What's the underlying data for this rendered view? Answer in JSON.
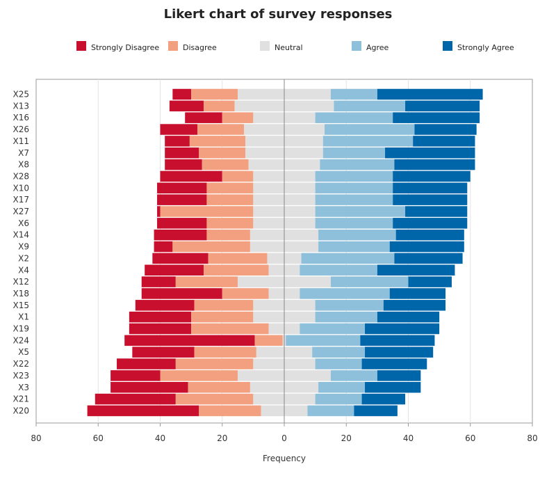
{
  "chart_data": {
    "type": "bar",
    "orientation": "horizontal-diverging-stacked",
    "title": "Likert chart of survey responses",
    "xlabel": "Frequency",
    "ylabel": "",
    "xlim": [
      -80,
      80
    ],
    "xticks": [
      -80,
      -60,
      -40,
      -20,
      0,
      20,
      40,
      60,
      80
    ],
    "xtick_labels": [
      "80",
      "60",
      "40",
      "20",
      "0",
      "20",
      "40",
      "60",
      "80"
    ],
    "grid": true,
    "legend_position": "top",
    "categories": [
      "X25",
      "X13",
      "X16",
      "X26",
      "X11",
      "X7",
      "X8",
      "X28",
      "X10",
      "X17",
      "X27",
      "X6",
      "X14",
      "X9",
      "X2",
      "X4",
      "X12",
      "X18",
      "X15",
      "X1",
      "X19",
      "X24",
      "X5",
      "X22",
      "X23",
      "X3",
      "X21",
      "X20"
    ],
    "series": [
      {
        "name": "Strongly Disagree",
        "color": "#C8102E",
        "values": [
          6,
          11,
          12,
          12,
          8,
          11,
          12,
          20,
          16,
          16,
          1,
          16,
          17,
          6,
          18,
          19,
          11,
          26,
          19,
          20,
          20,
          42,
          20,
          19,
          16,
          25,
          26,
          36
        ]
      },
      {
        "name": "Disagree",
        "color": "#F2A07F",
        "values": [
          15,
          10,
          10,
          15,
          18,
          15,
          15,
          10,
          15,
          15,
          30,
          15,
          14,
          25,
          19,
          21,
          20,
          15,
          19,
          20,
          25,
          9,
          20,
          25,
          25,
          20,
          25,
          20
        ]
      },
      {
        "name": "Neutral",
        "color": "#E0E0E0",
        "values": [
          30,
          32,
          20,
          26,
          25,
          25,
          23,
          20,
          20,
          20,
          20,
          20,
          22,
          22,
          11,
          10,
          30,
          10,
          20,
          20,
          10,
          1,
          18,
          20,
          30,
          22,
          20,
          15
        ]
      },
      {
        "name": "Agree",
        "color": "#8FC0DB",
        "values": [
          15,
          23,
          25,
          29,
          29,
          20,
          24,
          25,
          25,
          25,
          29,
          25,
          25,
          23,
          30,
          25,
          25,
          29,
          22,
          20,
          21,
          24,
          17,
          15,
          15,
          15,
          15,
          15
        ]
      },
      {
        "name": "Strongly Agree",
        "color": "#0066AA",
        "values": [
          34,
          24,
          28,
          20,
          20,
          29,
          26,
          25,
          24,
          24,
          20,
          24,
          22,
          24,
          22,
          25,
          14,
          18,
          20,
          20,
          24,
          24,
          22,
          21,
          14,
          18,
          14,
          14
        ]
      }
    ]
  }
}
